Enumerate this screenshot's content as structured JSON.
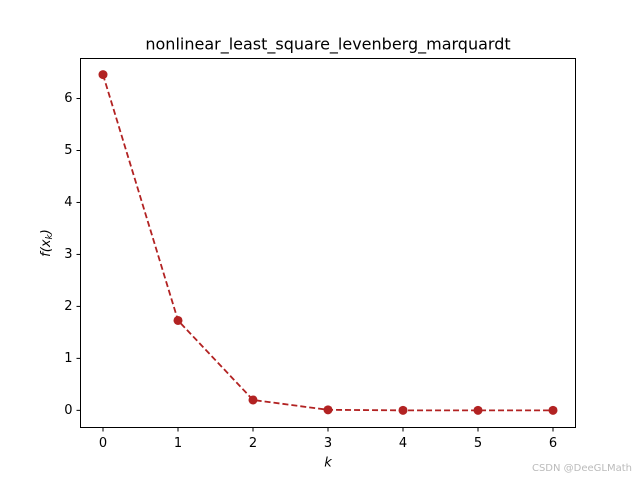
{
  "chart_data": {
    "type": "line",
    "title": "nonlinear_least_square_levenberg_marquardt",
    "xlabel": "k",
    "ylabel": [
      "f(x",
      "k",
      ")"
    ],
    "x": [
      0,
      1,
      2,
      3,
      4,
      5,
      6
    ],
    "series": [
      {
        "color": "#b22222",
        "values": [
          6.46,
          1.73,
          0.2,
          0.01,
          0,
          0,
          0
        ]
      }
    ],
    "xlim": [
      -0.3,
      6.3
    ],
    "xticks": [
      0,
      1,
      2,
      3,
      4,
      5,
      6
    ],
    "ylim": [
      -0.33,
      6.77
    ],
    "yticks": [
      0,
      1,
      2,
      3,
      4,
      5,
      6
    ],
    "watermark": "CSDN @DeeGLMath"
  }
}
